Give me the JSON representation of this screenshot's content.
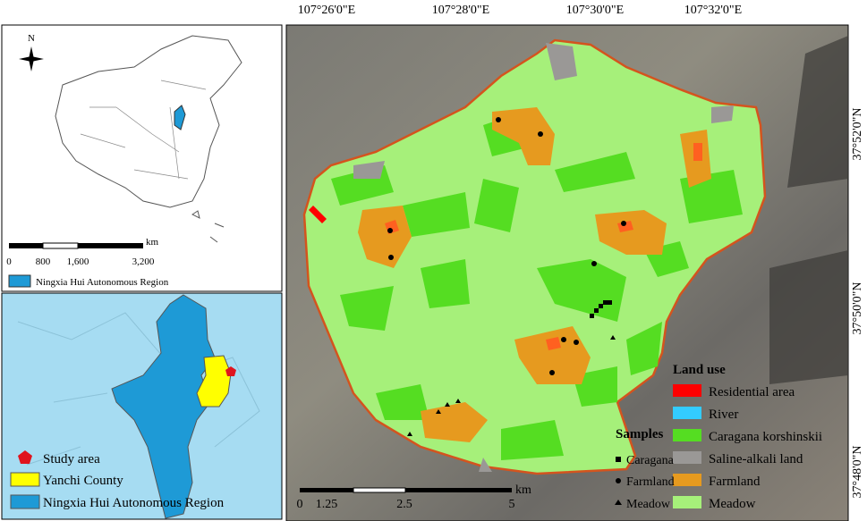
{
  "china_inset": {
    "north_label": "N",
    "scale": {
      "labels": [
        "0",
        "800",
        "1,600",
        "3,200"
      ],
      "unit": "km"
    },
    "legend": "Ningxia Hui Autonomous Region"
  },
  "ningxia_inset": {
    "legend": [
      "Study area",
      "Yanchi County",
      "Ningxia Hui Autonomous Region"
    ]
  },
  "main_map": {
    "longitudes": [
      "107°26'0\"E",
      "107°28'0\"E",
      "107°30'0\"E",
      "107°32'0\"E"
    ],
    "latitudes": [
      "37°52'0\"N",
      "37°50'0\"N",
      "37°48'0\"N"
    ],
    "land_use": {
      "title": "Land use",
      "items": [
        "Residential area",
        "River",
        "Caragana korshinskii",
        "Saline-alkali land",
        "Farmland",
        "Meadow"
      ]
    },
    "samples": {
      "title": "Samples",
      "items": [
        "Caragana",
        "Farmland",
        "Meadow"
      ]
    },
    "scale": {
      "labels": [
        "0",
        "1.25",
        "2.5",
        "5"
      ],
      "unit": "km"
    }
  }
}
